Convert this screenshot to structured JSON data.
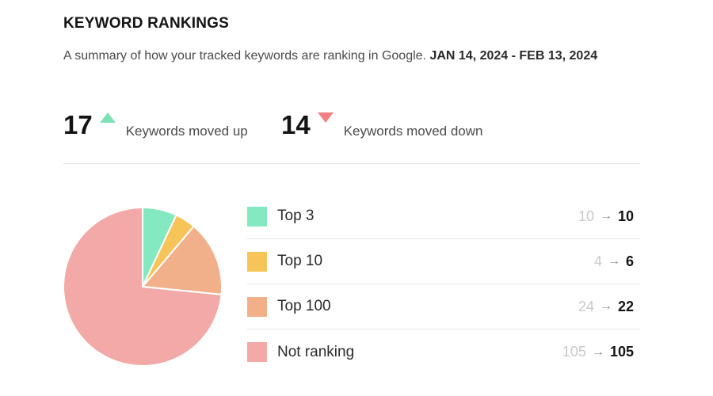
{
  "header": {
    "title": "KEYWORD RANKINGS",
    "summary": "A summary of how your tracked keywords are ranking in Google.",
    "date_range": "JAN 14, 2024 - FEB 13, 2024"
  },
  "stats": {
    "up": {
      "value": "17",
      "label": "Keywords moved up",
      "icon": "triangle-up-icon",
      "color": "#7de3b6"
    },
    "down": {
      "value": "14",
      "label": "Keywords moved down",
      "icon": "triangle-down-icon",
      "color": "#f27f82"
    }
  },
  "legend": [
    {
      "label": "Top 3",
      "prev": "10",
      "curr": "10",
      "color": "#84e8c0"
    },
    {
      "label": "Top 10",
      "prev": "4",
      "curr": "6",
      "color": "#f7c45a"
    },
    {
      "label": "Top 100",
      "prev": "24",
      "curr": "22",
      "color": "#f2b08a"
    },
    {
      "label": "Not ranking",
      "prev": "105",
      "curr": "105",
      "color": "#f2a9a8"
    }
  ],
  "arrow_glyph": "→",
  "chart_data": {
    "type": "pie",
    "categories": [
      "Top 3",
      "Top 10",
      "Top 100",
      "Not ranking"
    ],
    "values": [
      10,
      6,
      22,
      105
    ],
    "colors": [
      "#84e8c0",
      "#f7c45a",
      "#f2b08a",
      "#f2a9a8"
    ]
  }
}
